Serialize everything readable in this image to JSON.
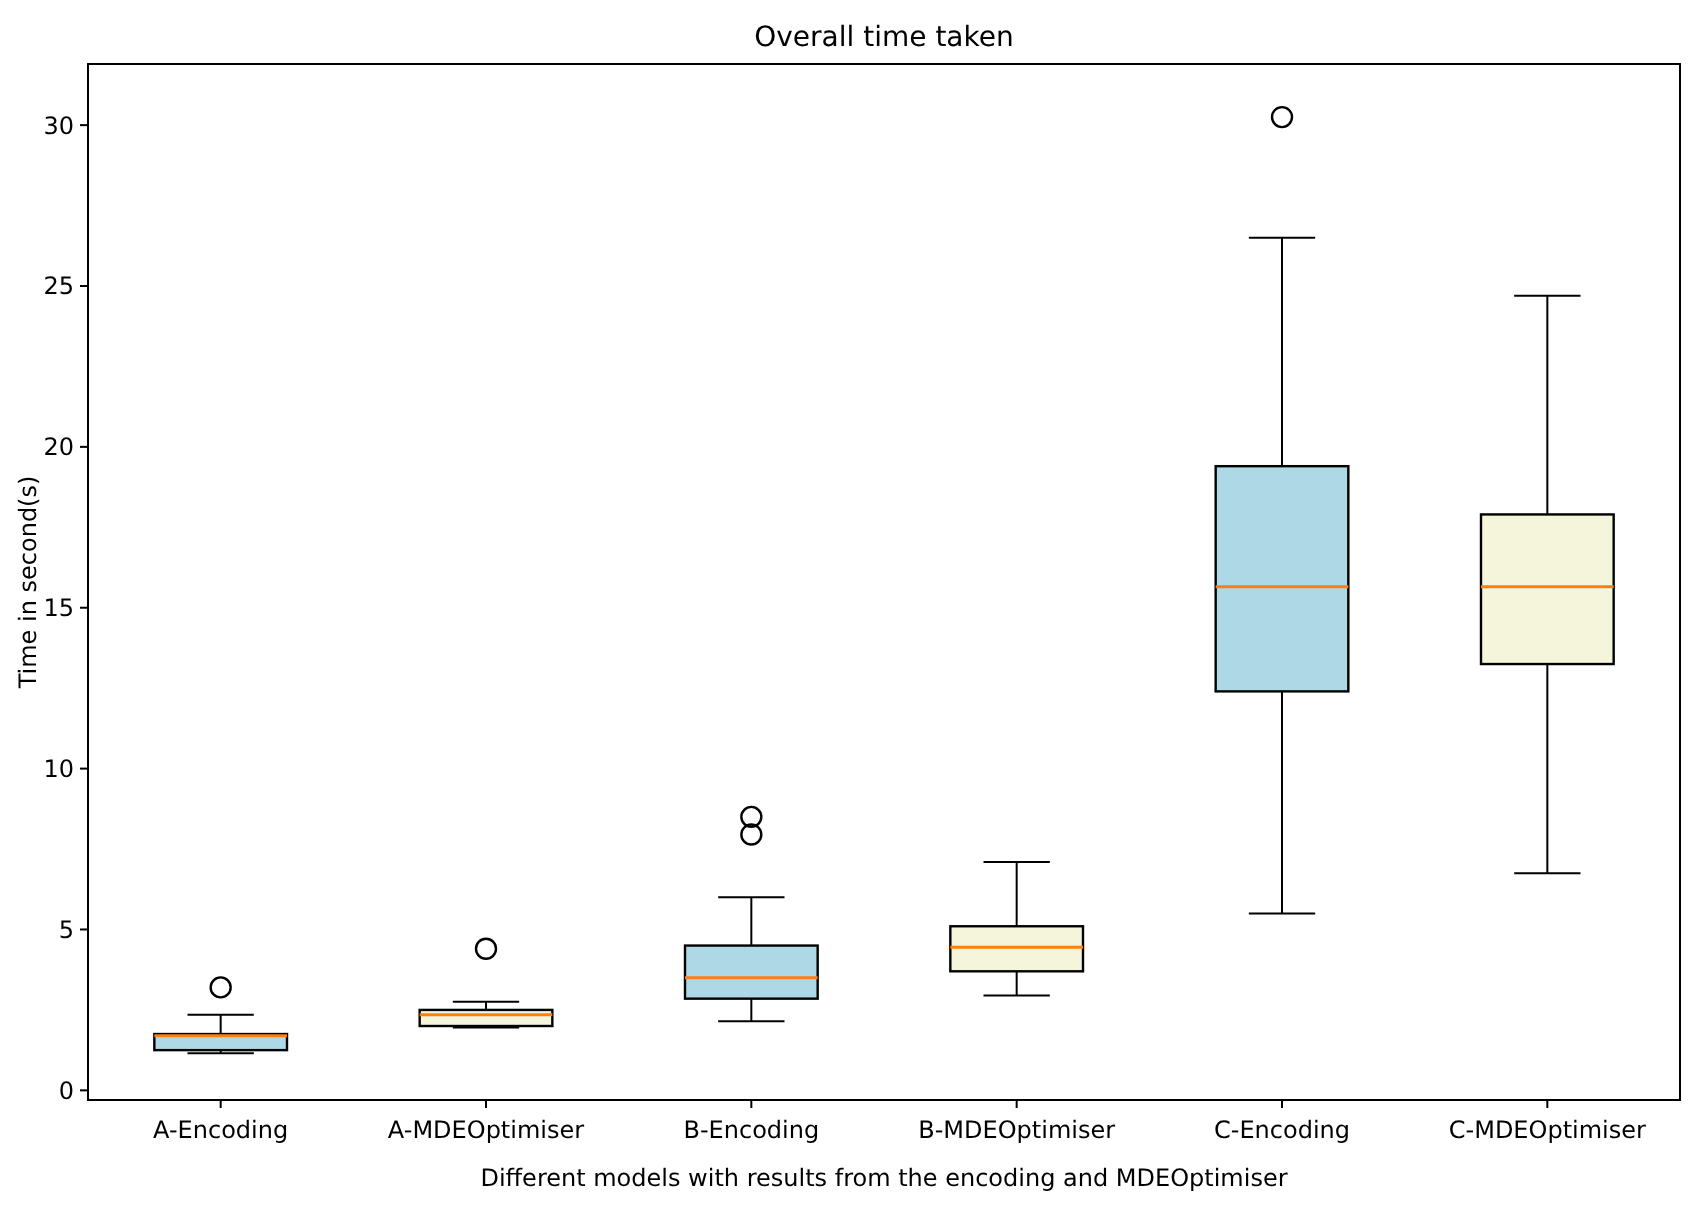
{
  "chart_data": {
    "type": "box",
    "title": "Overall time taken",
    "xlabel": "Different models with results from the encoding and MDEOptimiser",
    "ylabel": "Time in second(s)",
    "categories": [
      "A-Encoding",
      "A-MDEOptimiser",
      "B-Encoding",
      "B-MDEOptimiser",
      "C-Encoding",
      "C-MDEOptimiser"
    ],
    "colors": [
      "#add8e6",
      "#f5f5dc",
      "#add8e6",
      "#f5f5dc",
      "#add8e6",
      "#f5f5dc"
    ],
    "boxes": [
      {
        "low": 1.15,
        "q1": 1.25,
        "median": 1.7,
        "q3": 1.75,
        "high": 2.35,
        "outliers": [
          3.2
        ]
      },
      {
        "low": 1.95,
        "q1": 2.0,
        "median": 2.35,
        "q3": 2.5,
        "high": 2.75,
        "outliers": [
          4.4
        ]
      },
      {
        "low": 2.15,
        "q1": 2.85,
        "median": 3.5,
        "q3": 4.5,
        "high": 6.0,
        "outliers": [
          7.95,
          8.5
        ]
      },
      {
        "low": 2.95,
        "q1": 3.7,
        "median": 4.45,
        "q3": 5.1,
        "high": 7.1
      },
      {
        "low": 5.5,
        "q1": 12.4,
        "median": 15.65,
        "q3": 19.4,
        "high": 26.5,
        "outliers": [
          30.25
        ]
      },
      {
        "low": 6.75,
        "q1": 13.25,
        "median": 15.65,
        "q3": 17.9,
        "high": 24.7
      }
    ],
    "ylim": [
      -0.3,
      31.9
    ],
    "yticks": [
      0,
      5,
      10,
      15,
      20,
      25,
      30
    ],
    "grid": false
  }
}
